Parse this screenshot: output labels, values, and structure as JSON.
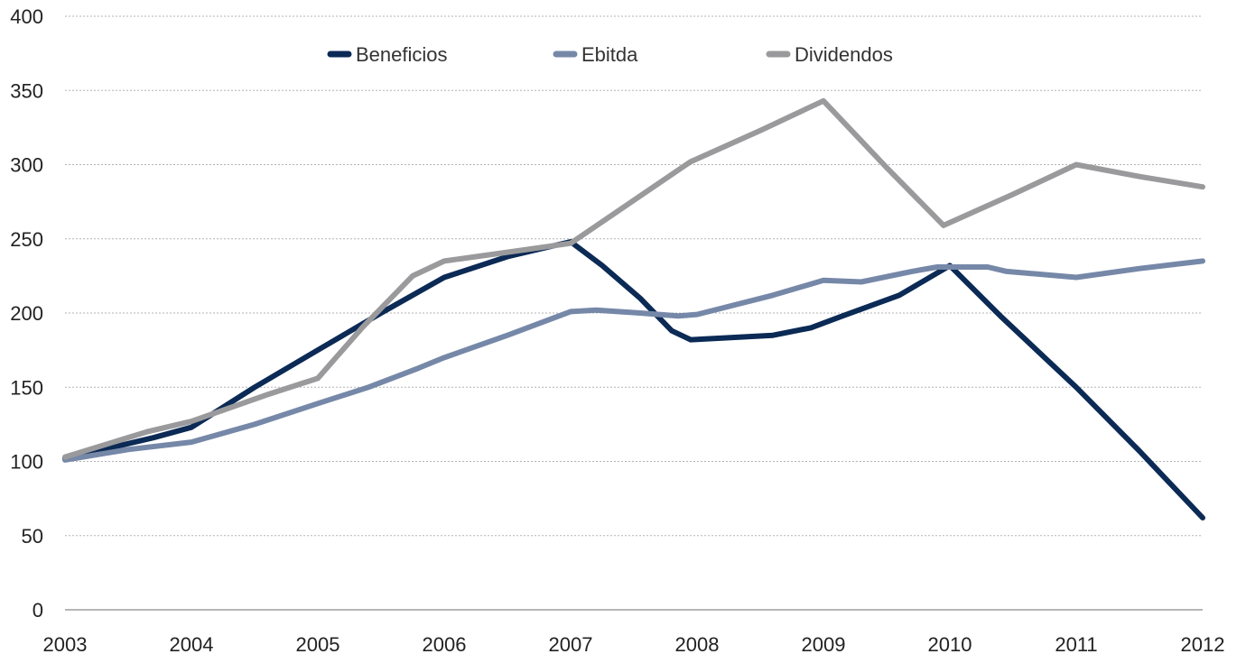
{
  "chart_data": {
    "type": "line",
    "x_start": 2003,
    "x_end": 2012,
    "x_ticks": [
      "2003",
      "2004",
      "2005",
      "2006",
      "2007",
      "2008",
      "2009",
      "2010",
      "2011",
      "2012"
    ],
    "y_ticks": [
      "0",
      "50",
      "100",
      "150",
      "200",
      "250",
      "300",
      "350",
      "400"
    ],
    "ylim": [
      0,
      400
    ],
    "grid": "horizontal-dotted",
    "legend_position": "top",
    "series": [
      {
        "name": "Beneficios",
        "color": "#0b2a55",
        "points": [
          [
            2003.0,
            102
          ],
          [
            2003.7,
            116
          ],
          [
            2004.0,
            123
          ],
          [
            2004.5,
            150
          ],
          [
            2005.0,
            175
          ],
          [
            2005.5,
            200
          ],
          [
            2006.0,
            224
          ],
          [
            2006.5,
            238
          ],
          [
            2007.0,
            248
          ],
          [
            2007.25,
            232
          ],
          [
            2007.55,
            210
          ],
          [
            2007.8,
            188
          ],
          [
            2007.95,
            182
          ],
          [
            2008.4,
            184
          ],
          [
            2008.6,
            185
          ],
          [
            2008.9,
            190
          ],
          [
            2009.15,
            198
          ],
          [
            2009.6,
            212
          ],
          [
            2010.0,
            232
          ],
          [
            2010.4,
            198
          ],
          [
            2010.75,
            170
          ],
          [
            2011.0,
            150
          ],
          [
            2011.5,
            107
          ],
          [
            2012.0,
            62
          ]
        ]
      },
      {
        "name": "Ebitda",
        "color": "#7688a8",
        "points": [
          [
            2003.0,
            101
          ],
          [
            2003.5,
            108
          ],
          [
            2004.0,
            113
          ],
          [
            2004.5,
            125
          ],
          [
            2005.0,
            139
          ],
          [
            2005.4,
            150
          ],
          [
            2005.8,
            163
          ],
          [
            2006.0,
            170
          ],
          [
            2006.5,
            185
          ],
          [
            2007.0,
            201
          ],
          [
            2007.2,
            202
          ],
          [
            2007.55,
            200
          ],
          [
            2007.85,
            198
          ],
          [
            2008.0,
            199
          ],
          [
            2008.6,
            212
          ],
          [
            2009.0,
            222
          ],
          [
            2009.3,
            221
          ],
          [
            2009.7,
            228
          ],
          [
            2009.9,
            231
          ],
          [
            2010.3,
            231
          ],
          [
            2010.45,
            228
          ],
          [
            2011.0,
            224
          ],
          [
            2011.5,
            230
          ],
          [
            2012.0,
            235
          ]
        ]
      },
      {
        "name": "Dividendos",
        "color": "#9a9a9c",
        "points": [
          [
            2003.0,
            103
          ],
          [
            2003.65,
            120
          ],
          [
            2004.0,
            127
          ],
          [
            2004.6,
            145
          ],
          [
            2005.0,
            156
          ],
          [
            2005.35,
            190
          ],
          [
            2005.75,
            225
          ],
          [
            2006.0,
            235
          ],
          [
            2006.5,
            241
          ],
          [
            2007.0,
            247
          ],
          [
            2007.5,
            276
          ],
          [
            2007.95,
            302
          ],
          [
            2008.5,
            323
          ],
          [
            2009.0,
            343
          ],
          [
            2009.5,
            298
          ],
          [
            2009.95,
            259
          ],
          [
            2010.5,
            280
          ],
          [
            2011.0,
            300
          ],
          [
            2011.5,
            292
          ],
          [
            2012.0,
            285
          ]
        ]
      }
    ]
  }
}
